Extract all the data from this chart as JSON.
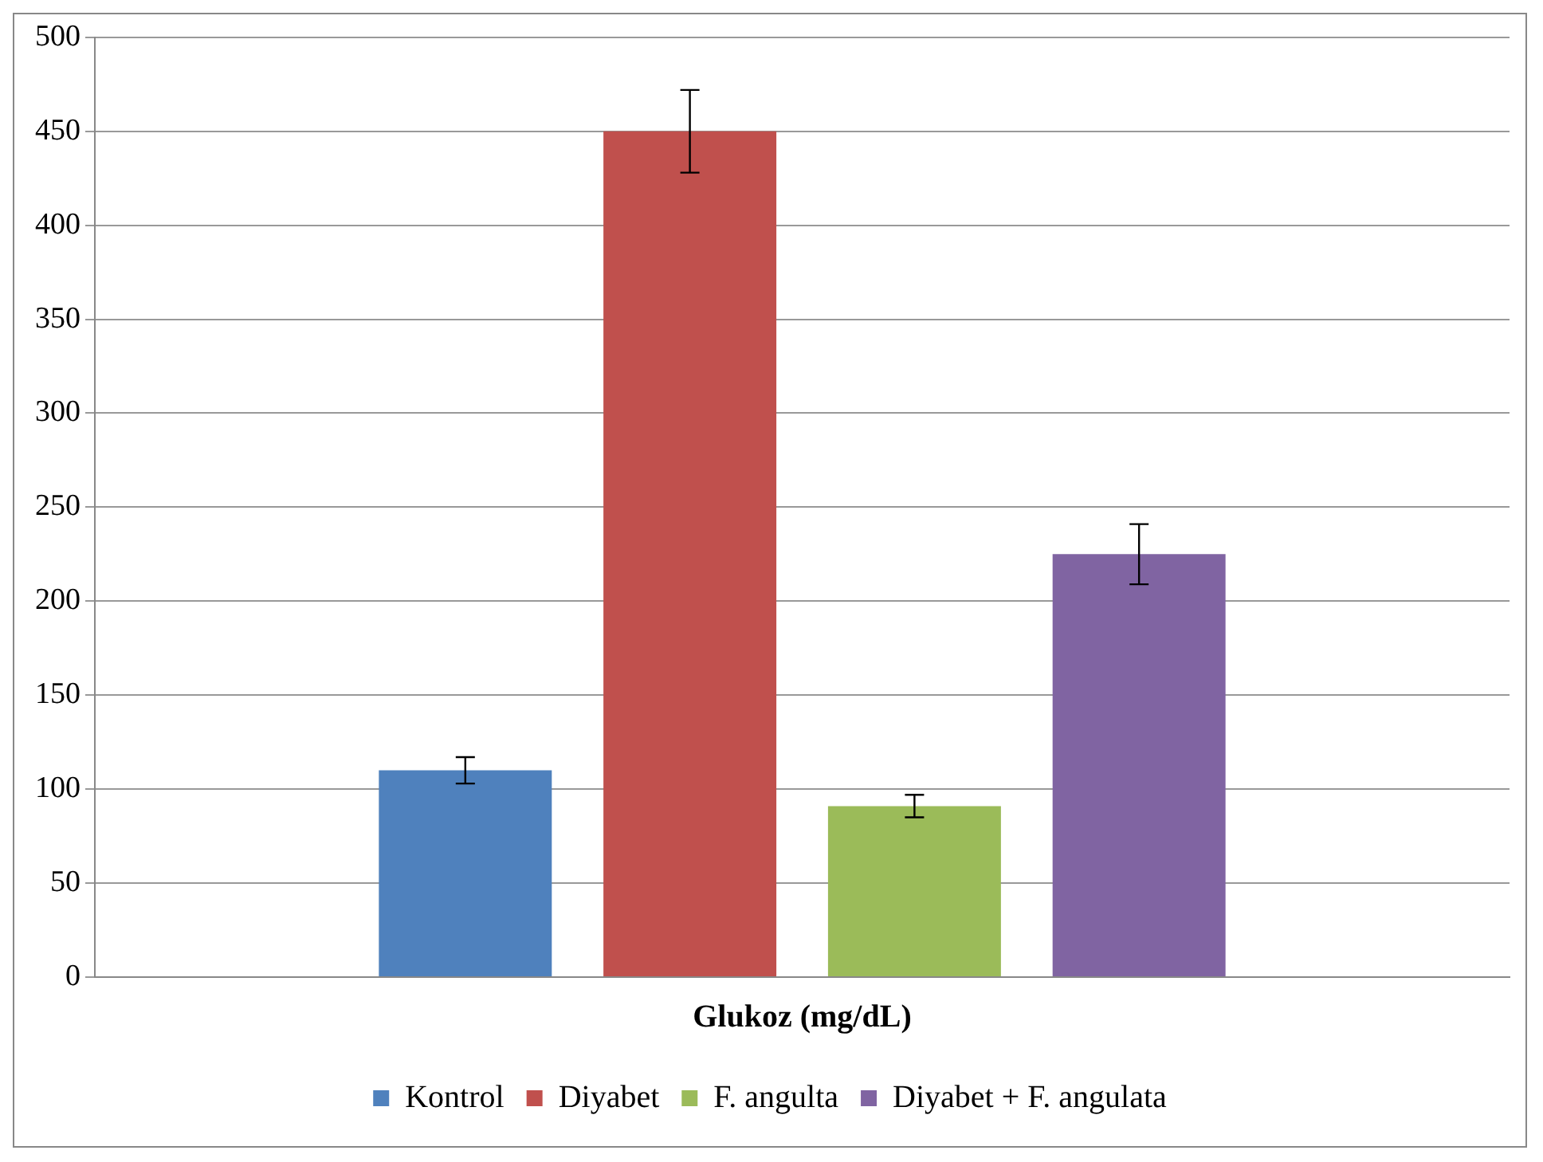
{
  "chart_data": {
    "type": "bar",
    "categories": [
      "Glukoz (mg/dL)"
    ],
    "series": [
      {
        "name": "Kontrol",
        "color": "#4f81bd",
        "values": [
          110
        ],
        "errors": [
          7
        ]
      },
      {
        "name": "Diyabet",
        "color": "#c0504d",
        "values": [
          450
        ],
        "errors": [
          22
        ]
      },
      {
        "name": "F. angulta",
        "color": "#9bbb59",
        "values": [
          91
        ],
        "errors": [
          6
        ]
      },
      {
        "name": "Diyabet + F. angulata",
        "color": "#8064a2",
        "values": [
          225
        ],
        "errors": [
          16
        ]
      }
    ],
    "ylim": [
      0,
      500
    ],
    "yticks": [
      0,
      50,
      100,
      150,
      200,
      250,
      300,
      350,
      400,
      450,
      500
    ],
    "grid": "y",
    "legend": "bottom"
  }
}
